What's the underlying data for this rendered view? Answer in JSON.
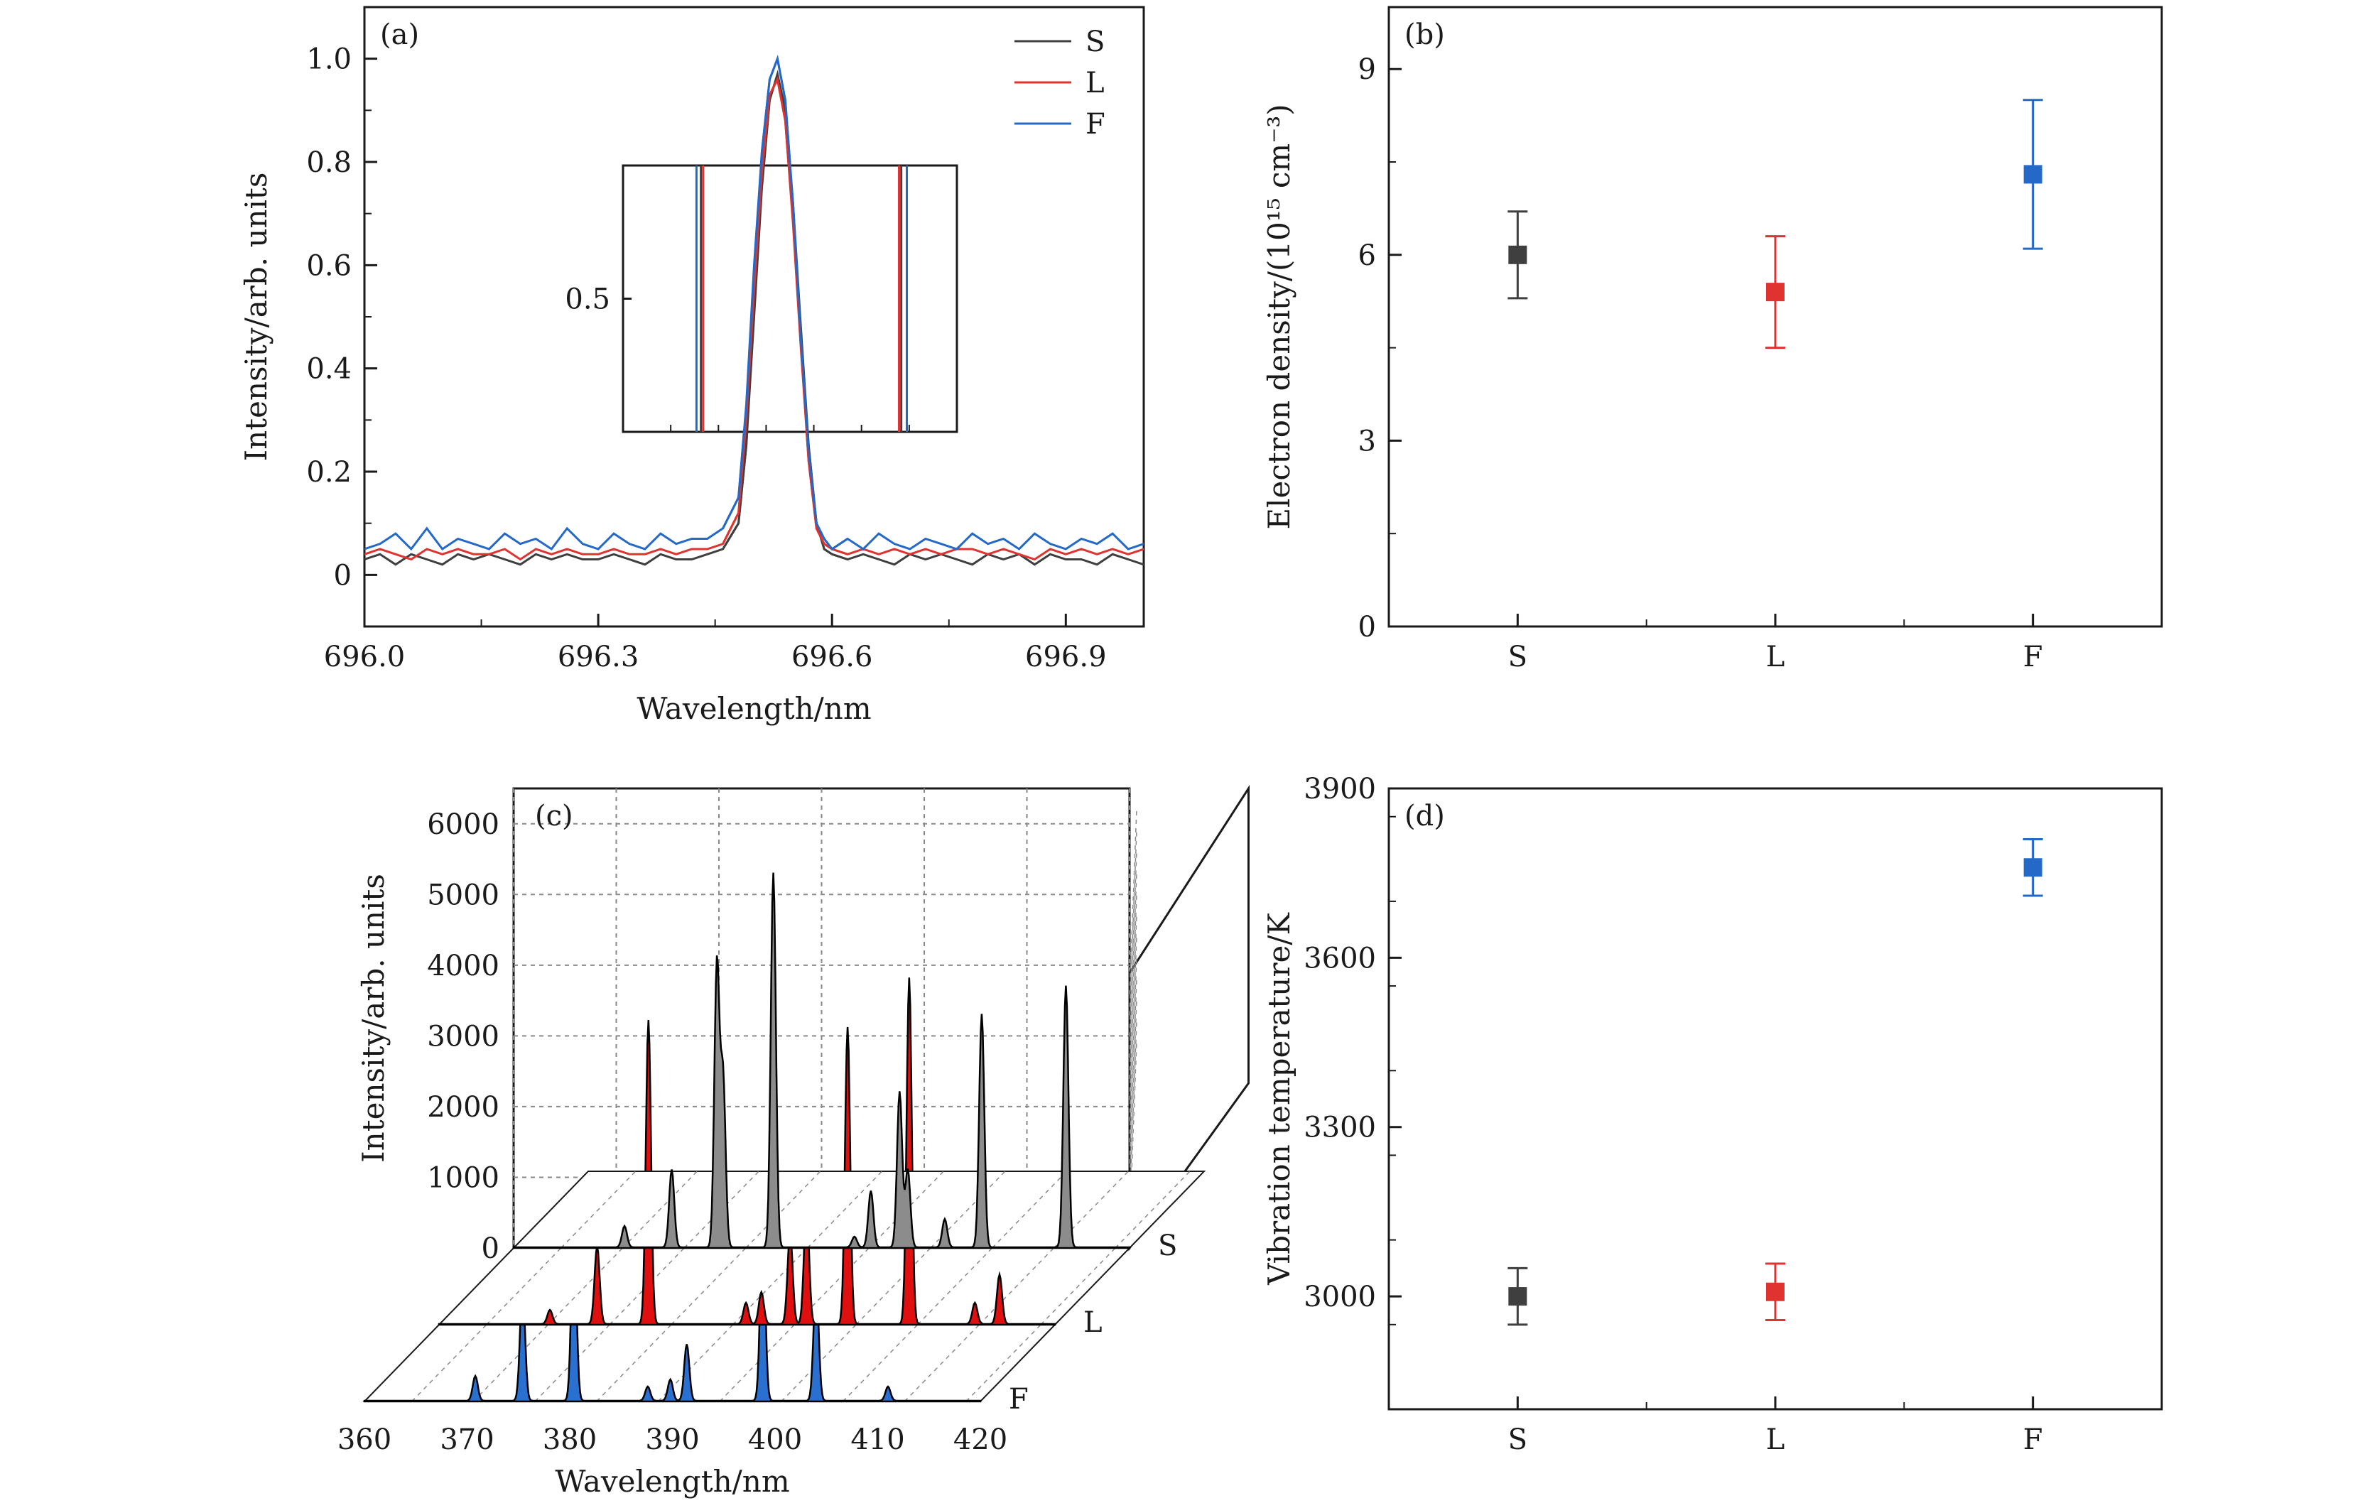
{
  "colors": {
    "S": "#3f3f3f",
    "L": "#e0332f",
    "F": "#2468c8",
    "S_fill": "#8c8c8c",
    "L_fill": "#e01010",
    "F_fill": "#2970d0",
    "axis": "#1a1a1a",
    "grid": "#8a8a8a"
  },
  "chart_data": [
    {
      "panel": "(a)",
      "type": "line",
      "xlabel": "Wavelength/nm",
      "ylabel": "Intensity/arb. units",
      "xlim": [
        696.0,
        697.0
      ],
      "ylim": [
        -0.1,
        1.1
      ],
      "xticks": [
        "696.0",
        "696.3",
        "696.6",
        "696.9"
      ],
      "yticks": [
        "0",
        "0.2",
        "0.4",
        "0.6",
        "0.8",
        "1.0"
      ],
      "legend": [
        "S",
        "L",
        "F"
      ],
      "series": [
        {
          "name": "S",
          "x": [
            696.0,
            696.02,
            696.04,
            696.06,
            696.08,
            696.1,
            696.12,
            696.14,
            696.16,
            696.18,
            696.2,
            696.22,
            696.24,
            696.26,
            696.28,
            696.3,
            696.32,
            696.34,
            696.36,
            696.38,
            696.4,
            696.42,
            696.44,
            696.46,
            696.48,
            696.49,
            696.5,
            696.51,
            696.52,
            696.53,
            696.54,
            696.55,
            696.56,
            696.57,
            696.58,
            696.59,
            696.6,
            696.62,
            696.64,
            696.66,
            696.68,
            696.7,
            696.72,
            696.74,
            696.76,
            696.78,
            696.8,
            696.82,
            696.84,
            696.86,
            696.88,
            696.9,
            696.92,
            696.94,
            696.96,
            696.98,
            697.0
          ],
          "y": [
            0.03,
            0.04,
            0.02,
            0.04,
            0.03,
            0.02,
            0.04,
            0.03,
            0.04,
            0.03,
            0.02,
            0.04,
            0.03,
            0.04,
            0.03,
            0.03,
            0.04,
            0.03,
            0.02,
            0.04,
            0.03,
            0.03,
            0.04,
            0.05,
            0.1,
            0.25,
            0.5,
            0.75,
            0.92,
            0.97,
            0.9,
            0.72,
            0.48,
            0.25,
            0.1,
            0.05,
            0.04,
            0.03,
            0.04,
            0.03,
            0.02,
            0.04,
            0.03,
            0.04,
            0.03,
            0.02,
            0.04,
            0.03,
            0.04,
            0.02,
            0.04,
            0.03,
            0.03,
            0.02,
            0.04,
            0.03,
            0.02
          ]
        },
        {
          "name": "L",
          "x": [
            696.0,
            696.02,
            696.04,
            696.06,
            696.08,
            696.1,
            696.12,
            696.14,
            696.16,
            696.18,
            696.2,
            696.22,
            696.24,
            696.26,
            696.28,
            696.3,
            696.32,
            696.34,
            696.36,
            696.38,
            696.4,
            696.42,
            696.44,
            696.46,
            696.48,
            696.49,
            696.5,
            696.51,
            696.52,
            696.53,
            696.54,
            696.55,
            696.56,
            696.57,
            696.58,
            696.59,
            696.6,
            696.62,
            696.64,
            696.66,
            696.68,
            696.7,
            696.72,
            696.74,
            696.76,
            696.78,
            696.8,
            696.82,
            696.84,
            696.86,
            696.88,
            696.9,
            696.92,
            696.94,
            696.96,
            696.98,
            697.0
          ],
          "y": [
            0.04,
            0.05,
            0.04,
            0.03,
            0.05,
            0.04,
            0.05,
            0.04,
            0.04,
            0.05,
            0.03,
            0.05,
            0.04,
            0.05,
            0.04,
            0.04,
            0.05,
            0.04,
            0.04,
            0.05,
            0.04,
            0.05,
            0.05,
            0.06,
            0.12,
            0.3,
            0.55,
            0.78,
            0.93,
            0.96,
            0.88,
            0.68,
            0.44,
            0.22,
            0.09,
            0.06,
            0.05,
            0.04,
            0.05,
            0.04,
            0.05,
            0.04,
            0.05,
            0.04,
            0.05,
            0.05,
            0.04,
            0.05,
            0.04,
            0.03,
            0.05,
            0.04,
            0.05,
            0.04,
            0.05,
            0.04,
            0.05
          ]
        },
        {
          "name": "F",
          "x": [
            696.0,
            696.02,
            696.04,
            696.06,
            696.08,
            696.1,
            696.12,
            696.14,
            696.16,
            696.18,
            696.2,
            696.22,
            696.24,
            696.26,
            696.28,
            696.3,
            696.32,
            696.34,
            696.36,
            696.38,
            696.4,
            696.42,
            696.44,
            696.46,
            696.48,
            696.49,
            696.5,
            696.51,
            696.52,
            696.53,
            696.54,
            696.55,
            696.56,
            696.57,
            696.58,
            696.59,
            696.6,
            696.62,
            696.64,
            696.66,
            696.68,
            696.7,
            696.72,
            696.74,
            696.76,
            696.78,
            696.8,
            696.82,
            696.84,
            696.86,
            696.88,
            696.9,
            696.92,
            696.94,
            696.96,
            696.98,
            697.0
          ],
          "y": [
            0.05,
            0.06,
            0.08,
            0.05,
            0.09,
            0.05,
            0.07,
            0.06,
            0.05,
            0.08,
            0.06,
            0.07,
            0.05,
            0.09,
            0.06,
            0.05,
            0.08,
            0.06,
            0.05,
            0.08,
            0.06,
            0.07,
            0.07,
            0.09,
            0.15,
            0.33,
            0.6,
            0.82,
            0.96,
            1.0,
            0.92,
            0.72,
            0.46,
            0.24,
            0.1,
            0.07,
            0.05,
            0.07,
            0.05,
            0.08,
            0.06,
            0.05,
            0.07,
            0.06,
            0.05,
            0.08,
            0.06,
            0.07,
            0.05,
            0.08,
            0.06,
            0.05,
            0.07,
            0.06,
            0.08,
            0.05,
            0.06
          ]
        }
      ],
      "inset": {
        "ytick": "0.5",
        "xlim": [
          696.4,
          696.7
        ],
        "ylim": [
          0.38,
          0.62
        ],
        "series": [
          {
            "name": "S",
            "x": [
              696.47,
              696.65
            ],
            "y": [
              0.5,
              0.5
            ]
          },
          {
            "name": "L",
            "x": [
              696.472,
              696.648
            ],
            "y": [
              0.5,
              0.5
            ]
          },
          {
            "name": "F",
            "x": [
              696.466,
              696.655
            ],
            "y": [
              0.5,
              0.5
            ]
          }
        ]
      }
    },
    {
      "panel": "(b)",
      "type": "scatter",
      "ylabel": "Electron density/(10¹⁵ cm⁻³)",
      "categories": [
        "S",
        "L",
        "F"
      ],
      "values": [
        6.0,
        5.4,
        7.3
      ],
      "errors": [
        0.7,
        0.9,
        1.2
      ],
      "ylim": [
        0,
        10
      ],
      "yticks": [
        "0",
        "3",
        "6",
        "9"
      ]
    },
    {
      "panel": "(c)",
      "type": "area",
      "xlabel": "Wavelength/nm",
      "ylabel": "Intensity/arb. units",
      "xlim": [
        360,
        420
      ],
      "ylim": [
        0,
        6500
      ],
      "xticks": [
        "360",
        "370",
        "380",
        "390",
        "400",
        "410",
        "420"
      ],
      "yticks": [
        "0",
        "1000",
        "2000",
        "3000",
        "4000",
        "5000",
        "6000"
      ],
      "series": [
        {
          "name": "S",
          "peaks": [
            [
              370.8,
              300
            ],
            [
              375.4,
              1100
            ],
            [
              379.8,
              4000
            ],
            [
              380.4,
              2400
            ],
            [
              385.3,
              5300
            ],
            [
              393.2,
              150
            ],
            [
              394.8,
              800
            ],
            [
              397.6,
              2200
            ],
            [
              398.4,
              1100
            ],
            [
              402.0,
              400
            ],
            [
              405.6,
              3300
            ],
            [
              413.8,
              3700
            ]
          ]
        },
        {
          "name": "L",
          "peaks": [
            [
              370.8,
              200
            ],
            [
              375.4,
              1100
            ],
            [
              380.4,
              4300
            ],
            [
              389.9,
              300
            ],
            [
              391.4,
              450
            ],
            [
              394.2,
              1300
            ],
            [
              395.8,
              1700
            ],
            [
              399.8,
              4200
            ],
            [
              405.8,
              4900
            ],
            [
              412.2,
              300
            ],
            [
              414.6,
              700
            ]
          ]
        },
        {
          "name": "F",
          "peaks": [
            [
              370.8,
              350
            ],
            [
              375.4,
              1600
            ],
            [
              380.4,
              2500
            ],
            [
              387.6,
              200
            ],
            [
              389.8,
              300
            ],
            [
              391.4,
              800
            ],
            [
              398.8,
              2500
            ],
            [
              404.0,
              1700
            ],
            [
              411.0,
              200
            ]
          ]
        }
      ]
    },
    {
      "panel": "(d)",
      "type": "scatter",
      "ylabel": "Vibration temperature/K",
      "categories": [
        "S",
        "L",
        "F"
      ],
      "values": [
        3000,
        3008,
        3760
      ],
      "errors": [
        50,
        50,
        50
      ],
      "ylim": [
        2800,
        3900
      ],
      "yticks": [
        "3000",
        "3300",
        "3600",
        "3900"
      ]
    }
  ]
}
